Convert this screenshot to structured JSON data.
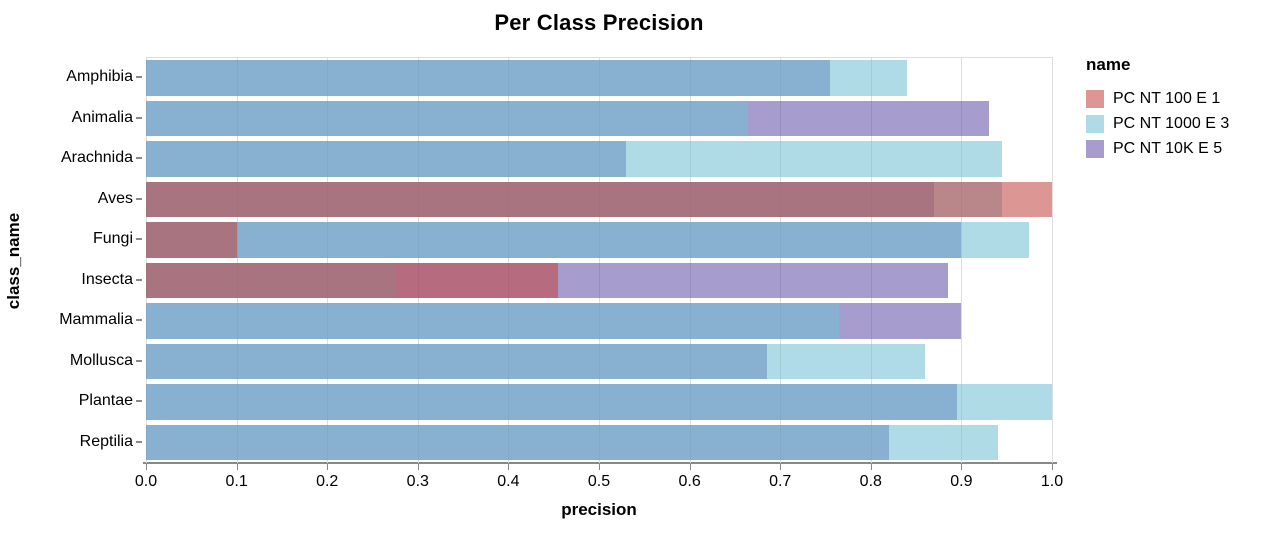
{
  "chart_data": {
    "type": "bar",
    "orientation": "horizontal",
    "stacking": "layered-overlapping-transparent",
    "title": "Per Class Precision",
    "xlabel": "precision",
    "ylabel": "class_name",
    "legend_title": "name",
    "legend_position": "right",
    "grid": true,
    "xlim": [
      0.0,
      1.0
    ],
    "xticks": [
      0.0,
      0.1,
      0.2,
      0.3,
      0.4,
      0.5,
      0.6,
      0.7,
      0.8,
      0.9,
      1.0
    ],
    "xtick_labels": [
      "0.0",
      "0.1",
      "0.2",
      "0.3",
      "0.4",
      "0.5",
      "0.6",
      "0.7",
      "0.8",
      "0.9",
      "1.0"
    ],
    "categories": [
      "Amphibia",
      "Animalia",
      "Arachnida",
      "Aves",
      "Fungi",
      "Insecta",
      "Mammalia",
      "Mollusca",
      "Plantae",
      "Reptilia"
    ],
    "series": [
      {
        "name": "PC NT 100 E 1",
        "swatch_color": "#dc9694",
        "layer_rgba": "rgba(194,71,67,0.57)",
        "values": [
          0,
          0,
          0,
          1.0,
          0.1,
          0.455,
          0,
          0,
          0,
          0
        ]
      },
      {
        "name": "PC NT 1000 E 3",
        "swatch_color": "#aedbe6",
        "layer_rgba": "rgba(113,192,211,0.57)",
        "values": [
          0.84,
          0.665,
          0.945,
          0.945,
          0.975,
          0.275,
          0.765,
          0.86,
          1.0,
          0.94
        ]
      },
      {
        "name": "PC NT 10K E 5",
        "swatch_color": "#a79cce",
        "layer_rgba": "rgba(101,81,169,0.57)",
        "values": [
          0.755,
          0.93,
          0.53,
          0.87,
          0.9,
          0.885,
          0.9,
          0.685,
          0.895,
          0.82
        ]
      }
    ],
    "observed_blend_colors": {
      "lightblue_over_purple": "#88b0d3",
      "salmon_over_purple": "#c06d82",
      "salmon_over_lightblue": "#b8888d",
      "triple_overlap": "#ac7a87"
    },
    "axis_colors": {
      "gridline": "#dddddd",
      "axis_line": "#888888",
      "tick": "#888888"
    }
  }
}
